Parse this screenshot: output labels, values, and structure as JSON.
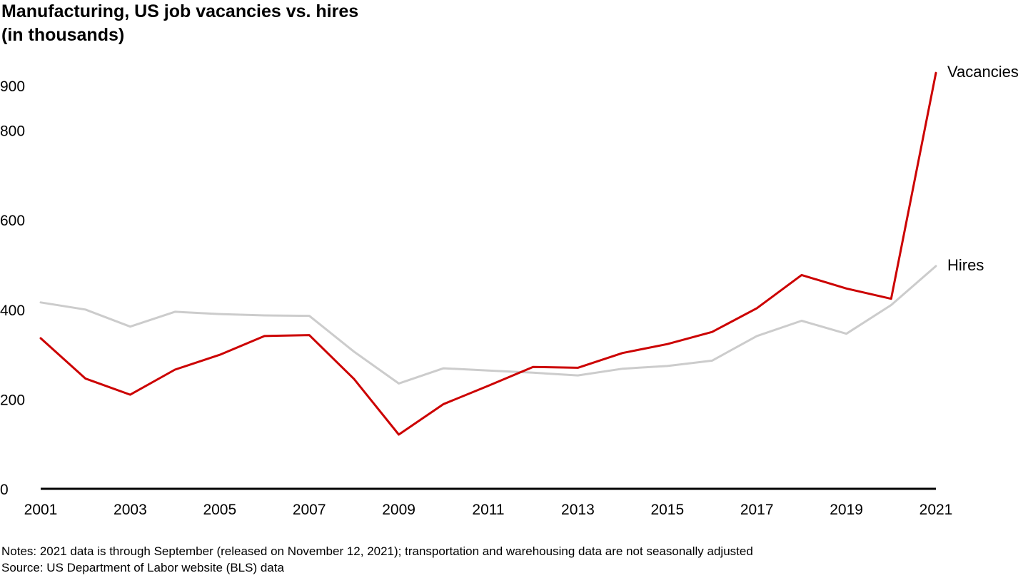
{
  "title_line1": "Manufacturing, US job vacancies vs. hires",
  "title_line2": "(in thousands)",
  "notes": "Notes: 2021 data is through September (released on November 12, 2021); transportation and warehousing data are not seasonally adjusted",
  "source": "Source: US Department of Labor website (BLS) data",
  "colors": {
    "vacancies": "#cc0000",
    "hires": "#cccccc",
    "axis": "#000000"
  },
  "chart_data": {
    "type": "line",
    "title": "Manufacturing, US job vacancies vs. hires (in thousands)",
    "x": [
      2001,
      2002,
      2003,
      2004,
      2005,
      2006,
      2007,
      2008,
      2009,
      2010,
      2011,
      2012,
      2013,
      2014,
      2015,
      2016,
      2017,
      2018,
      2019,
      2020,
      2021
    ],
    "x_tick_labels": [
      "2001",
      "2003",
      "2005",
      "2007",
      "2009",
      "2011",
      "2013",
      "2015",
      "2017",
      "2019",
      "2021"
    ],
    "y_tick_labels": [
      "0",
      "200",
      "400",
      "600",
      "800",
      "900"
    ],
    "y_ticks": [
      0,
      200,
      400,
      600,
      800,
      900
    ],
    "ylim": [
      0,
      920
    ],
    "grid": false,
    "series": [
      {
        "name": "Vacancies",
        "color": "#cc0000",
        "values": [
          336,
          246,
          210,
          266,
          299,
          341,
          343,
          245,
          121,
          189,
          230,
          272,
          270,
          303,
          323,
          350,
          403,
          477,
          447,
          424,
          928
        ]
      },
      {
        "name": "Hires",
        "color": "#cccccc",
        "values": [
          416,
          400,
          362,
          395,
          390,
          387,
          386,
          306,
          235,
          269,
          264,
          259,
          253,
          268,
          274,
          286,
          341,
          375,
          346,
          410,
          497
        ]
      }
    ]
  }
}
